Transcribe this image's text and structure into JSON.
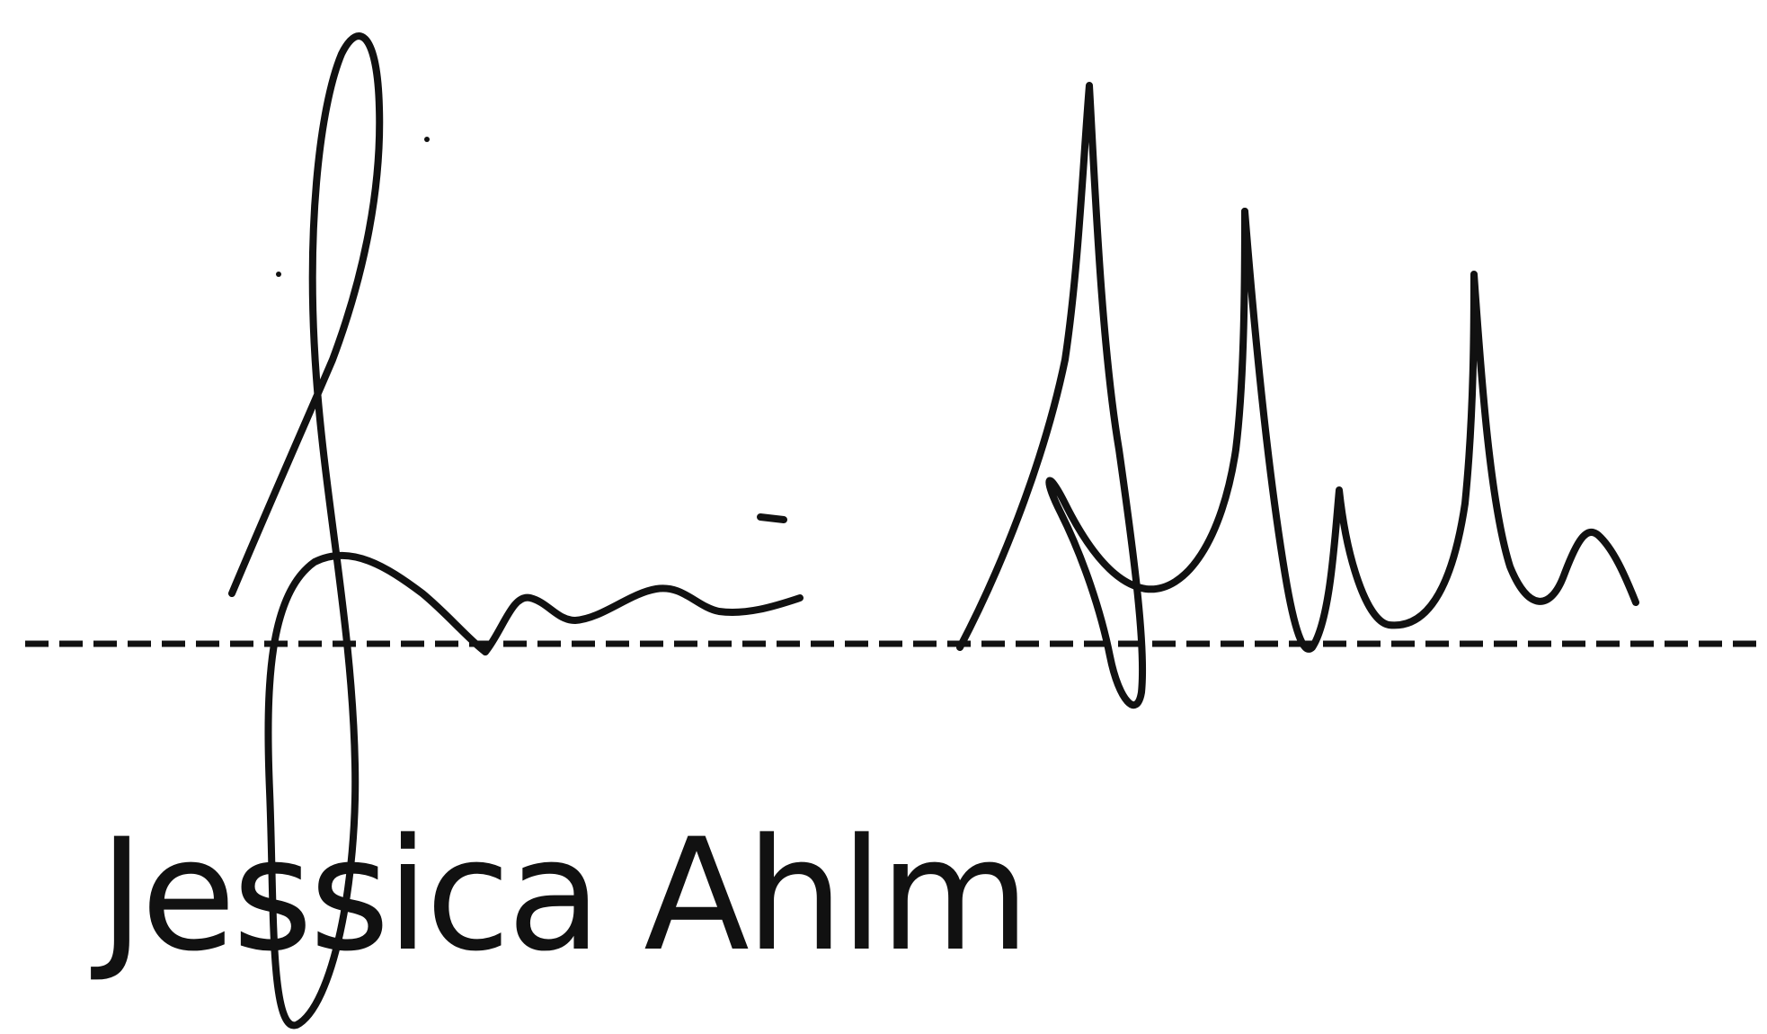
{
  "document": {
    "signer_name": "Jessica Ahlm"
  },
  "signature": {
    "description_name": "handwritten-signature",
    "ink_color": "#111111"
  },
  "signature_line": {
    "style": "dashed",
    "color": "#111111"
  }
}
